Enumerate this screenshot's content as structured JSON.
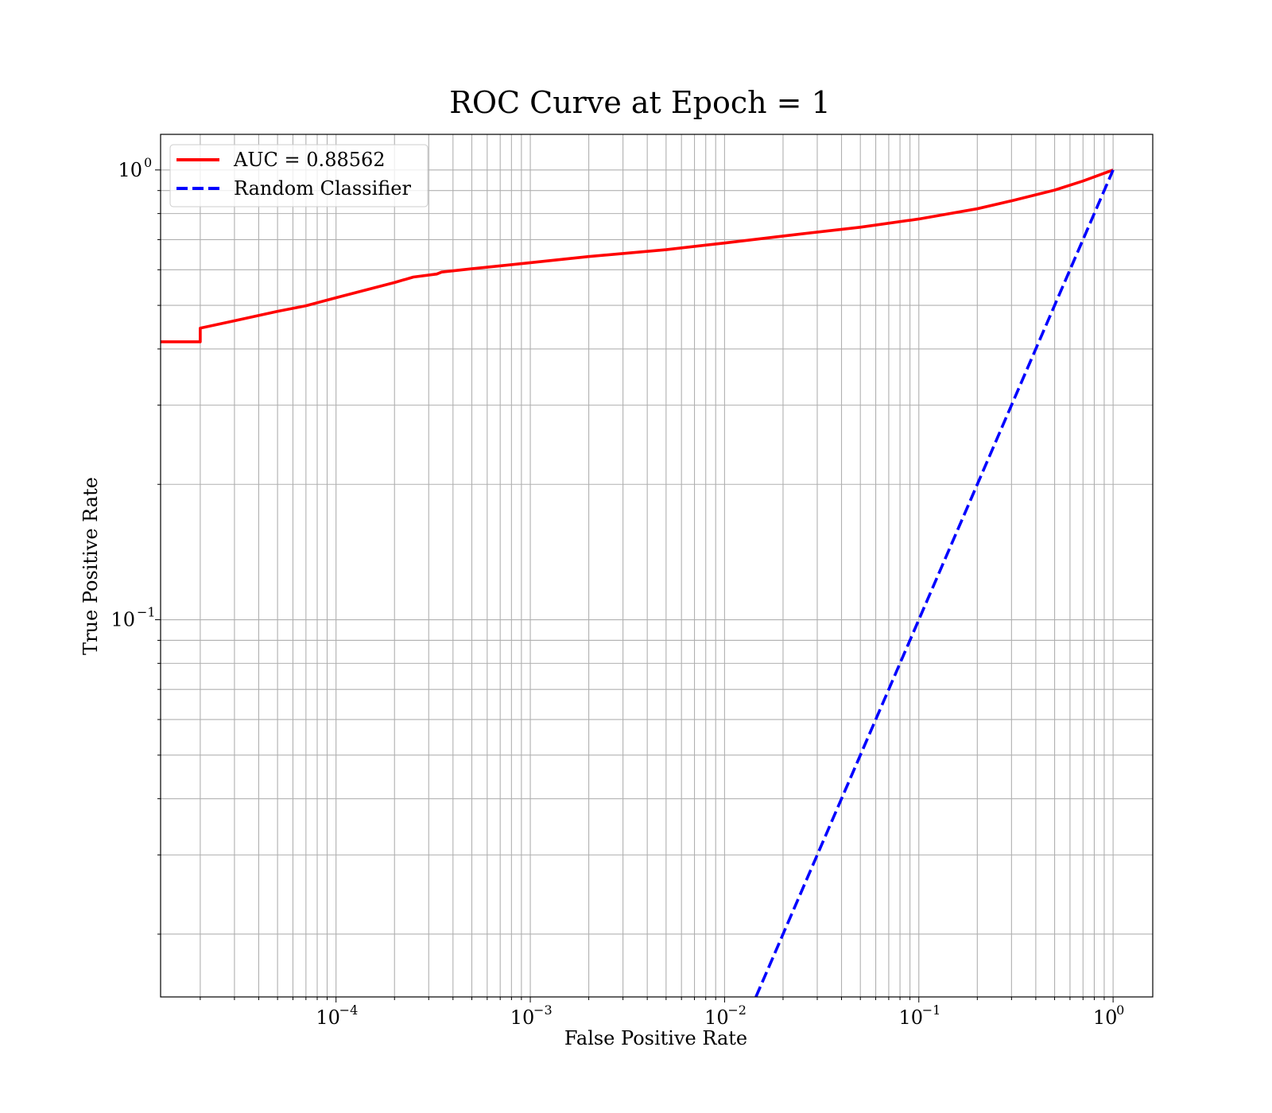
{
  "chart_data": {
    "type": "line",
    "title": "ROC Curve at Epoch = 1",
    "xlabel": "False Positive Rate",
    "ylabel": "True Positive Rate",
    "xscale": "log",
    "yscale": "log",
    "xlim": [
      1.25e-05,
      1.6
    ],
    "ylim": [
      0.0145,
      1.2
    ],
    "grid": "on (major and minor)",
    "legend_position": "top-left",
    "x_ticks": [
      {
        "base": "10",
        "exp": "−4",
        "value": 0.0001
      },
      {
        "base": "10",
        "exp": "−3",
        "value": 0.001
      },
      {
        "base": "10",
        "exp": "−2",
        "value": 0.01
      },
      {
        "base": "10",
        "exp": "−1",
        "value": 0.1
      },
      {
        "base": "10",
        "exp": "0",
        "value": 1
      }
    ],
    "y_ticks": [
      {
        "base": "10",
        "exp": "0",
        "value": 1
      },
      {
        "base": "10",
        "exp": "−1",
        "value": 0.1
      }
    ],
    "series": [
      {
        "name": "AUC = 0.88562",
        "color": "#ff0000",
        "style": "solid",
        "x": [
          1.25e-05,
          2e-05,
          2e-05,
          3e-05,
          5e-05,
          7e-05,
          0.0001,
          0.0002,
          0.00025,
          0.00033,
          0.00035,
          0.0005,
          0.001,
          0.002,
          0.005,
          0.01,
          0.02,
          0.05,
          0.1,
          0.2,
          0.3,
          0.5,
          0.7,
          1.0
        ],
        "y": [
          0.415,
          0.415,
          0.445,
          0.462,
          0.485,
          0.499,
          0.52,
          0.562,
          0.578,
          0.587,
          0.593,
          0.603,
          0.622,
          0.642,
          0.665,
          0.688,
          0.713,
          0.746,
          0.778,
          0.82,
          0.854,
          0.902,
          0.945,
          1.0
        ]
      },
      {
        "name": "Random Classifier",
        "color": "#0000ff",
        "style": "dashed",
        "x": [
          0.0145,
          1.0
        ],
        "y": [
          0.0145,
          1.0
        ]
      }
    ]
  }
}
